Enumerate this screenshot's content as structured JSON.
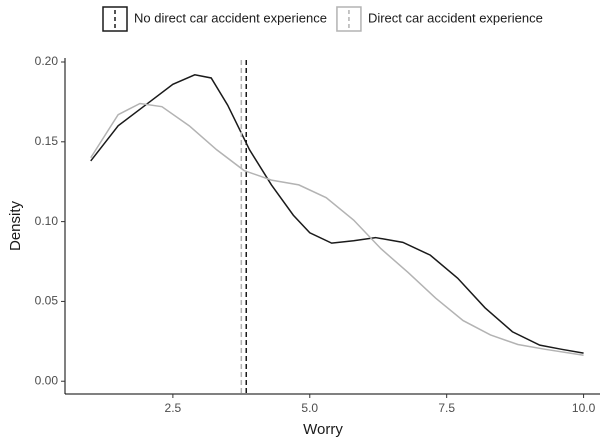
{
  "chart_data": {
    "type": "line",
    "x_label": "Worry",
    "y_label": "Density",
    "xlim": [
      0.53,
      10.3
    ],
    "ylim": [
      -0.008,
      0.2025
    ],
    "xticks": [
      2.5,
      {
        "value": 5,
        "label": "5.0"
      },
      7.5,
      {
        "value": 10,
        "label": "10.0"
      }
    ],
    "yticks": [
      {
        "value": 0,
        "label": "0.00"
      },
      {
        "value": 0.05,
        "label": "0.05"
      },
      {
        "value": 0.1,
        "label": "0.10"
      },
      {
        "value": 0.15,
        "label": "0.15"
      },
      {
        "value": 0.2,
        "label": "0.20"
      }
    ],
    "legend": "top",
    "series": [
      {
        "name": "No direct car accident experience",
        "color": "#1a1a1a",
        "mean": 3.84,
        "x": [
          1.0,
          1.5,
          2.0,
          2.5,
          2.9,
          3.2,
          3.5,
          3.9,
          4.3,
          4.7,
          5.0,
          5.4,
          5.8,
          6.2,
          6.7,
          7.2,
          7.7,
          8.2,
          8.7,
          9.2,
          9.6,
          10.0
        ],
        "values": [
          0.138,
          0.16,
          0.173,
          0.186,
          0.192,
          0.19,
          0.173,
          0.145,
          0.123,
          0.104,
          0.093,
          0.0865,
          0.088,
          0.09,
          0.087,
          0.079,
          0.0646,
          0.046,
          0.031,
          0.0226,
          0.02,
          0.0176
        ]
      },
      {
        "name": "Direct car accident experience",
        "color": "#b3b3b3",
        "mean": 3.75,
        "x": [
          1.0,
          1.5,
          1.9,
          2.3,
          2.8,
          3.3,
          3.8,
          4.3,
          4.8,
          5.3,
          5.8,
          6.3,
          6.8,
          7.3,
          7.8,
          8.3,
          8.8,
          9.3,
          10.0
        ],
        "values": [
          0.14,
          0.167,
          0.174,
          0.172,
          0.16,
          0.145,
          0.132,
          0.126,
          0.123,
          0.115,
          0.101,
          0.083,
          0.068,
          0.052,
          0.038,
          0.029,
          0.023,
          0.02,
          0.0163
        ]
      }
    ]
  }
}
